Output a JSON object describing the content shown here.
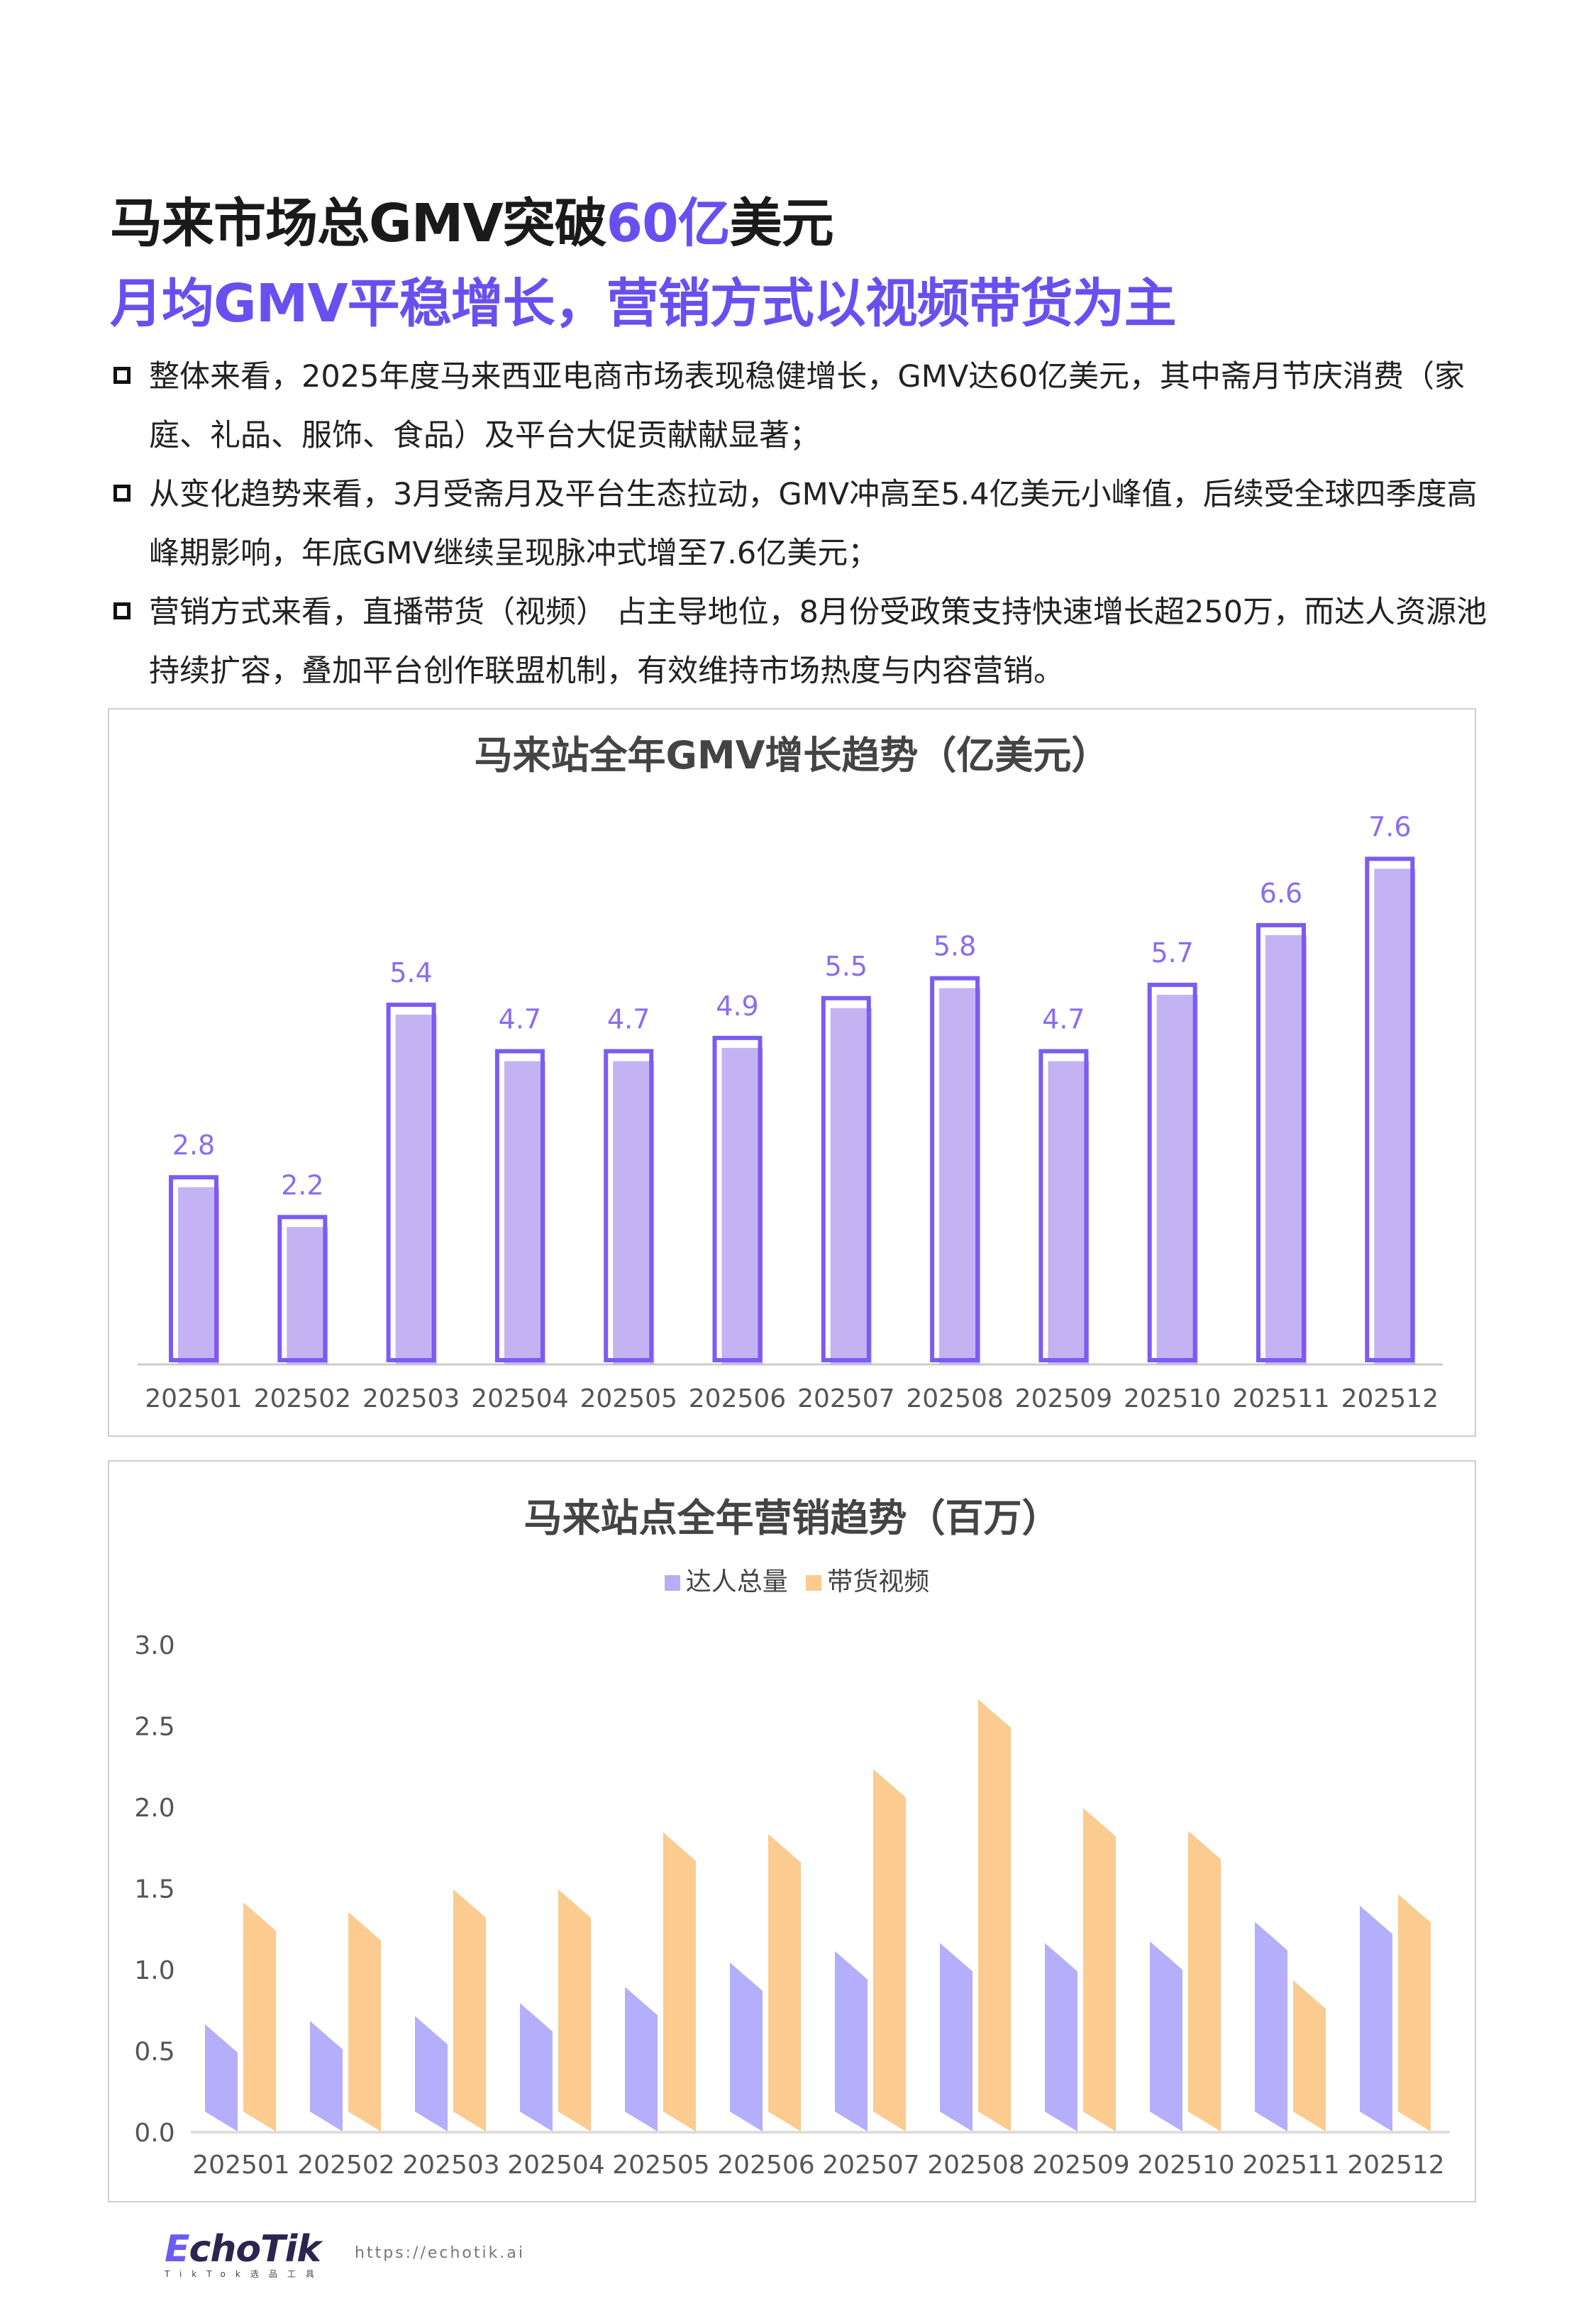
{
  "heading": {
    "line1_pre": "马来市场总GMV突破",
    "line1_highlight": "60亿",
    "line1_post": "美元",
    "line2": "月均GMV平稳增长，营销方式以视频带货为主"
  },
  "bullets": [
    "整体来看，2025年度马来西亚电商市场表现稳健增长，GMV达60亿美元，其中斋月节庆消费（家庭、礼品、服饰、食品）及平台大促贡献献显著；",
    "从变化趋势来看，3月受斋月及平台生态拉动，GMV冲高至5.4亿美元小峰值，后续受全球四季度高峰期影响，年底GMV继续呈现脉冲式增至7.6亿美元；",
    "营销方式来看，直播带货（视频） 占主导地位，8月份受政策支持快速增长超250万，而达人资源池持续扩容，叠加平台创作联盟机制，有效维持市场热度与内容营销。"
  ],
  "footer": {
    "logo": "EchoTik",
    "logo_sub": "TikTok选品工具",
    "url": "https://echotik.ai"
  },
  "chart_data": [
    {
      "type": "bar",
      "title": "马来站全年GMV增长趋势（亿美元）",
      "categories": [
        "202501",
        "202502",
        "202503",
        "202504",
        "202505",
        "202506",
        "202507",
        "202508",
        "202509",
        "202510",
        "202511",
        "202512"
      ],
      "values": [
        2.8,
        2.2,
        5.4,
        4.7,
        4.7,
        4.9,
        5.5,
        5.8,
        4.7,
        5.7,
        6.6,
        7.6
      ],
      "value_labels": [
        "2.8",
        "2.2",
        "5.4",
        "4.7",
        "4.7",
        "4.9",
        "5.5",
        "5.8",
        "4.7",
        "5.7",
        "6.6",
        "7.6"
      ],
      "xlabel": "",
      "ylabel": "",
      "ylim": [
        0,
        8
      ],
      "colors": {
        "fill": "#c4b3f2",
        "outline": "#7b5cf0",
        "label": "#8a6cf0"
      }
    },
    {
      "type": "bar",
      "title": "马来站点全年营销趋势（百万）",
      "categories": [
        "202501",
        "202502",
        "202503",
        "202504",
        "202505",
        "202506",
        "202507",
        "202508",
        "202509",
        "202510",
        "202511",
        "202512"
      ],
      "series": [
        {
          "name": "达人总量",
          "color": "#b5aefa",
          "values": [
            0.66,
            0.68,
            0.71,
            0.79,
            0.89,
            1.04,
            1.11,
            1.16,
            1.16,
            1.17,
            1.29,
            1.39
          ]
        },
        {
          "name": "带货视频",
          "color": "#fbcb90",
          "values": [
            1.41,
            1.35,
            1.49,
            1.49,
            1.84,
            1.83,
            2.23,
            2.66,
            1.99,
            1.85,
            0.93,
            1.46
          ]
        }
      ],
      "yticks": [
        "0.0",
        "0.5",
        "1.0",
        "1.5",
        "2.0",
        "2.5",
        "3.0"
      ],
      "ylim": [
        0,
        3.0
      ],
      "legend": "top-center"
    }
  ]
}
